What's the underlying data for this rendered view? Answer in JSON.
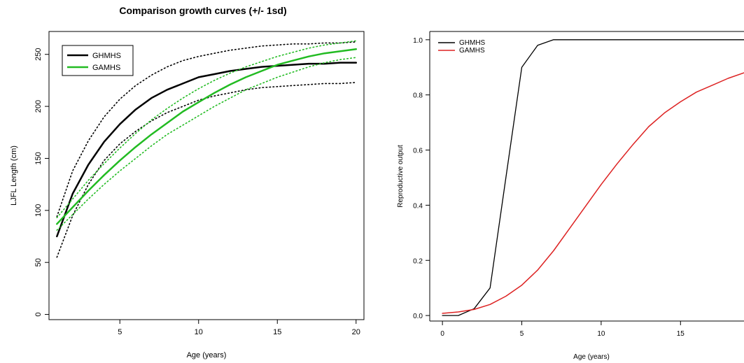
{
  "chart_data": [
    {
      "type": "line",
      "title": "Comparison growth curves (+/- 1sd)",
      "xlabel": "Age (years)",
      "ylabel": "LJFL Length (cm)",
      "xlim": [
        0.5,
        20.5
      ],
      "ylim": [
        -5,
        272
      ],
      "xticks": [
        5,
        10,
        15,
        20
      ],
      "yticks": [
        0,
        50,
        100,
        150,
        200,
        250
      ],
      "grid": false,
      "legend": "top-left",
      "series": [
        {
          "name": "GHMHS",
          "color": "#000000",
          "style": "solid",
          "width": 2.5,
          "x": [
            1,
            2,
            3,
            4,
            5,
            6,
            7,
            8,
            9,
            10,
            11,
            12,
            13,
            14,
            15,
            16,
            17,
            18,
            19,
            20
          ],
          "y": [
            75,
            116,
            144,
            166,
            183,
            197,
            208,
            216,
            222,
            228,
            231,
            234,
            236,
            238,
            239,
            240,
            241,
            241,
            242,
            242
          ]
        },
        {
          "name": "",
          "color": "#000000",
          "style": "dotted",
          "width": 1.6,
          "x": [
            1,
            2,
            3,
            4,
            5,
            6,
            7,
            8,
            9,
            10,
            11,
            12,
            13,
            14,
            15,
            16,
            17,
            18,
            19,
            20
          ],
          "y": [
            94,
            138,
            167,
            190,
            207,
            220,
            230,
            238,
            244,
            248,
            251,
            254,
            256,
            258,
            259,
            260,
            260,
            261,
            261,
            262
          ]
        },
        {
          "name": "",
          "color": "#000000",
          "style": "dotted",
          "width": 1.6,
          "x": [
            1,
            2,
            3,
            4,
            5,
            6,
            7,
            8,
            9,
            10,
            11,
            12,
            13,
            14,
            15,
            16,
            17,
            18,
            19,
            20
          ],
          "y": [
            55,
            95,
            125,
            148,
            164,
            176,
            186,
            194,
            200,
            206,
            210,
            213,
            216,
            218,
            219,
            220,
            221,
            222,
            222,
            223
          ]
        },
        {
          "name": "GAMHS",
          "color": "#22bb22",
          "style": "solid",
          "width": 2.5,
          "x": [
            1,
            2,
            3,
            4,
            5,
            6,
            7,
            8,
            9,
            10,
            11,
            12,
            13,
            14,
            15,
            16,
            17,
            18,
            19,
            20
          ],
          "y": [
            87,
            103,
            119,
            134,
            148,
            161,
            173,
            184,
            195,
            204,
            213,
            221,
            228,
            234,
            240,
            244,
            248,
            251,
            253,
            255
          ]
        },
        {
          "name": "",
          "color": "#22bb22",
          "style": "dotted",
          "width": 1.6,
          "x": [
            1,
            2,
            3,
            4,
            5,
            6,
            7,
            8,
            9,
            10,
            11,
            12,
            13,
            14,
            15,
            16,
            17,
            18,
            19,
            20
          ],
          "y": [
            93,
            111,
            129,
            145,
            160,
            174,
            187,
            198,
            208,
            217,
            225,
            232,
            238,
            243,
            248,
            252,
            256,
            259,
            261,
            263
          ]
        },
        {
          "name": "",
          "color": "#22bb22",
          "style": "dotted",
          "width": 1.6,
          "x": [
            1,
            2,
            3,
            4,
            5,
            6,
            7,
            8,
            9,
            10,
            11,
            12,
            13,
            14,
            15,
            16,
            17,
            18,
            19,
            20
          ],
          "y": [
            81,
            96,
            111,
            125,
            138,
            150,
            162,
            173,
            182,
            191,
            200,
            208,
            216,
            222,
            228,
            233,
            238,
            242,
            245,
            247
          ]
        }
      ]
    },
    {
      "type": "line",
      "title": "",
      "xlabel": "Age (years)",
      "ylabel": "Reproductive output",
      "xlim": [
        -0.8,
        19.0
      ],
      "ylim": [
        -0.02,
        1.03
      ],
      "xticks": [
        0,
        5,
        10,
        15
      ],
      "yticks": [
        0.0,
        0.2,
        0.4,
        0.6,
        0.8,
        1.0
      ],
      "ytick_labels": [
        "0.0",
        "0.2",
        "0.4",
        "0.6",
        "0.8",
        "1.0"
      ],
      "grid": false,
      "legend": "top-left",
      "series": [
        {
          "name": "GHMHS",
          "color": "#000000",
          "style": "solid",
          "width": 1.3,
          "x": [
            0,
            1,
            2,
            3,
            4,
            5,
            6,
            7,
            8,
            9,
            10,
            11,
            12,
            13,
            14,
            15,
            16,
            17,
            18,
            19
          ],
          "y": [
            0.0,
            0.0,
            0.025,
            0.1,
            0.5,
            0.9,
            0.98,
            1.0,
            1.0,
            1.0,
            1.0,
            1.0,
            1.0,
            1.0,
            1.0,
            1.0,
            1.0,
            1.0,
            1.0,
            1.0
          ]
        },
        {
          "name": "GAMHS",
          "color": "#dd2222",
          "style": "solid",
          "width": 1.5,
          "x": [
            0,
            1,
            2,
            3,
            4,
            5,
            6,
            7,
            8,
            9,
            10,
            11,
            12,
            13,
            14,
            15,
            16,
            17,
            18,
            19
          ],
          "y": [
            0.008,
            0.013,
            0.022,
            0.04,
            0.07,
            0.11,
            0.165,
            0.235,
            0.315,
            0.395,
            0.475,
            0.55,
            0.62,
            0.685,
            0.735,
            0.775,
            0.81,
            0.835,
            0.86,
            0.88
          ]
        }
      ]
    }
  ]
}
